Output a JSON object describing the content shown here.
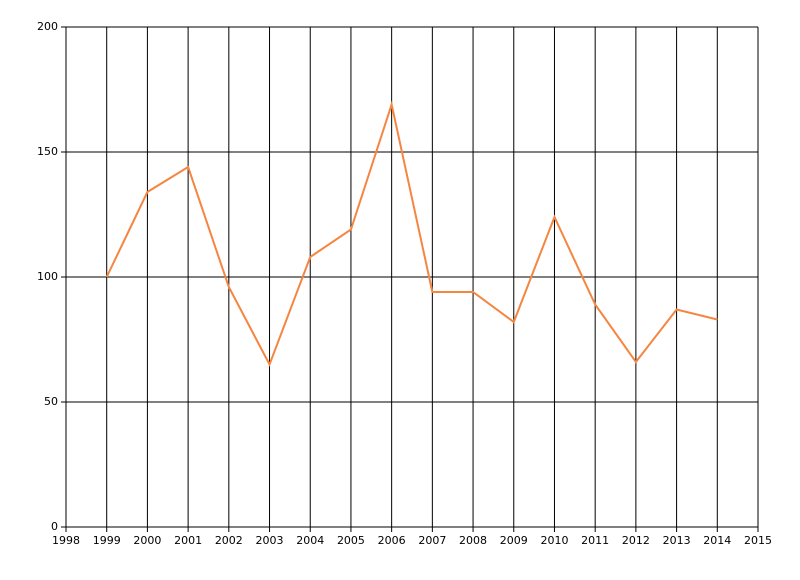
{
  "chart_data": {
    "type": "line",
    "x": [
      1999,
      2000,
      2001,
      2002,
      2003,
      2004,
      2005,
      2006,
      2007,
      2008,
      2009,
      2010,
      2011,
      2012,
      2013,
      2014
    ],
    "series": [
      {
        "color": "#f58540",
        "values": [
          100,
          134,
          144,
          96,
          65,
          108,
          119,
          169,
          94,
          94,
          82,
          124,
          89,
          66,
          87,
          83
        ]
      }
    ],
    "xlim": [
      1998,
      2015
    ],
    "xticks": [
      1998,
      1999,
      2000,
      2001,
      2002,
      2003,
      2004,
      2005,
      2006,
      2007,
      2008,
      2009,
      2010,
      2011,
      2012,
      2013,
      2014,
      2015
    ],
    "ylim": [
      0,
      200
    ],
    "yticks": [
      0,
      50,
      100,
      150,
      200
    ],
    "grid": true
  }
}
